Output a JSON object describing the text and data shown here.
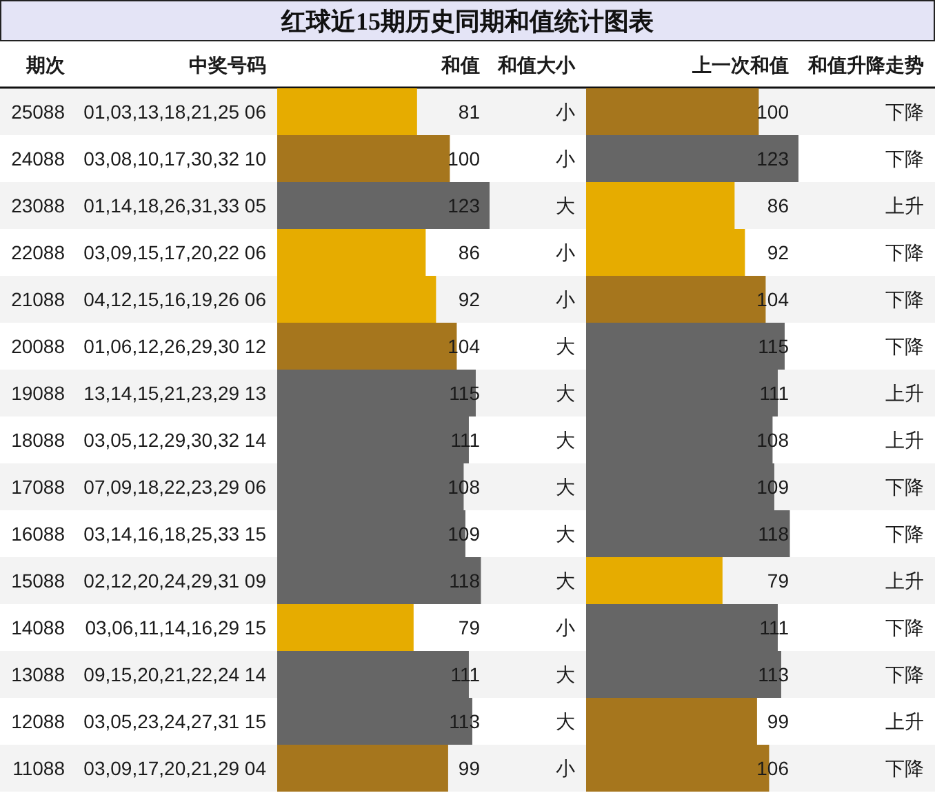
{
  "chart_data": [
    {
      "type": "bar",
      "orientation": "horizontal",
      "title": "红球近15期历史同期和值统计图表",
      "ylabel": "期次",
      "xlabel": "和值",
      "categories": [
        "25088",
        "24088",
        "23088",
        "22088",
        "21088",
        "20088",
        "19088",
        "18088",
        "17088",
        "16088",
        "15088",
        "14088",
        "13088",
        "12088",
        "11088"
      ],
      "values": [
        81,
        100,
        123,
        86,
        92,
        104,
        115,
        111,
        108,
        109,
        118,
        79,
        111,
        113,
        99
      ],
      "colors": [
        "#e6ac00",
        "#a6761d",
        "#666666",
        "#e6ac00",
        "#e6ac00",
        "#a6761d",
        "#666666",
        "#666666",
        "#666666",
        "#666666",
        "#666666",
        "#e6ac00",
        "#666666",
        "#666666",
        "#a6761d"
      ],
      "data_labels": true,
      "tick_labels": "y",
      "annotations": [
        "中奖号码",
        "01,03,13,18,21,25 06",
        "03,08,10,17,30,32 10",
        "01,14,18,26,31,33 05",
        "03,09,15,17,20,22 06",
        "04,12,15,16,19,26 06",
        "01,06,12,26,29,30 12",
        "13,14,15,21,23,29 13",
        "03,05,12,29,30,32 14",
        "07,09,18,22,23,29 06",
        "03,14,16,18,25,33 15",
        "02,12,20,24,29,31 09",
        "03,06,11,14,16,29 15",
        "09,15,20,21,22,24 14",
        "03,05,23,24,27,31 15",
        "03,09,17,20,21,29 04",
        "和值大小",
        "小",
        "小",
        "大",
        "小",
        "小",
        "大",
        "大",
        "大",
        "大",
        "大",
        "大",
        "小",
        "大",
        "大",
        "小"
      ]
    },
    {
      "type": "bar",
      "orientation": "horizontal",
      "xlabel": "上一次和值",
      "values": [
        100,
        123,
        86,
        92,
        104,
        115,
        111,
        108,
        109,
        118,
        79,
        111,
        113,
        99,
        106
      ],
      "colors": [
        "#a6761d",
        "#666666",
        "#e6ac00",
        "#e6ac00",
        "#a6761d",
        "#666666",
        "#666666",
        "#666666",
        "#666666",
        "#666666",
        "#e6ac00",
        "#666666",
        "#666666",
        "#a6761d",
        "#a6761d"
      ],
      "data_labels": true,
      "annotations": [
        "和值升降走势",
        "下降",
        "下降",
        "上升",
        "下降",
        "下降",
        "下降",
        "上升",
        "上升",
        "下降",
        "下降",
        "上升",
        "下降",
        "下降",
        "上升",
        "下降"
      ]
    }
  ]
}
